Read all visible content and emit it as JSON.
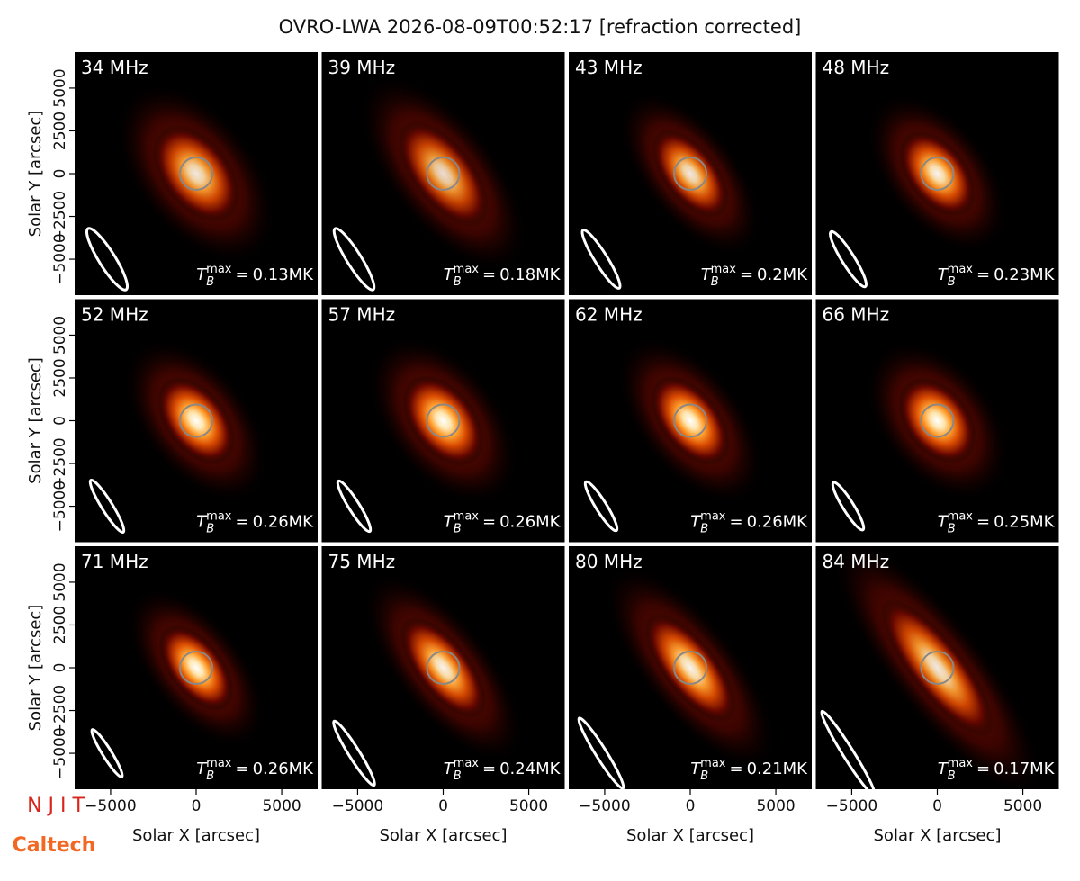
{
  "chart_data": {
    "type": "image-grid",
    "title": "OVRO-LWA 2026-08-09T00:52:17 [refraction corrected]",
    "xlabel": "Solar X [arcsec]",
    "ylabel": "Solar Y [arcsec]",
    "xlim": [
      -7100,
      7100
    ],
    "ylim": [
      -7100,
      7100
    ],
    "xticks": [
      {
        "value": -5000,
        "label": "−5000"
      },
      0,
      5000
    ],
    "yticks": [
      {
        "value": -5000,
        "label": "−5000"
      },
      {
        "value": -2500,
        "label": "−2500"
      },
      0,
      2500,
      5000
    ],
    "tb_symbol": "T",
    "tb_sub": "B",
    "tb_sup": "max",
    "tb_eq": "=",
    "panels": [
      {
        "label": "34 MHz",
        "tb_max": "0.13MK"
      },
      {
        "label": "39 MHz",
        "tb_max": "0.18MK"
      },
      {
        "label": "43 MHz",
        "tb_max": "0.2MK"
      },
      {
        "label": "48 MHz",
        "tb_max": "0.23MK"
      },
      {
        "label": "52 MHz",
        "tb_max": "0.26MK"
      },
      {
        "label": "57 MHz",
        "tb_max": "0.26MK"
      },
      {
        "label": "62 MHz",
        "tb_max": "0.26MK"
      },
      {
        "label": "66 MHz",
        "tb_max": "0.25MK"
      },
      {
        "label": "71 MHz",
        "tb_max": "0.26MK"
      },
      {
        "label": "75 MHz",
        "tb_max": "0.24MK"
      },
      {
        "label": "80 MHz",
        "tb_max": "0.21MK"
      },
      {
        "label": "84 MHz",
        "tb_max": "0.17MK"
      }
    ],
    "logos": [
      "N J I T",
      "Caltech"
    ]
  }
}
